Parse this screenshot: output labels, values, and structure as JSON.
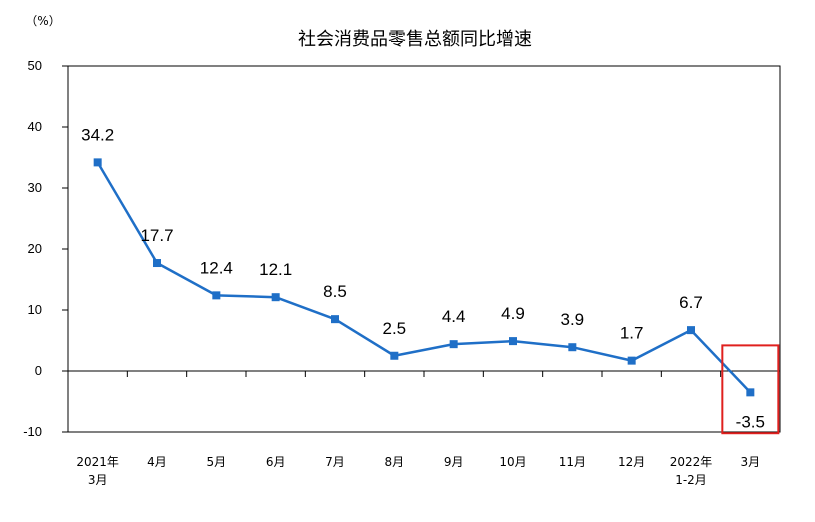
{
  "chart_data": {
    "type": "line",
    "title": "社会消费品零售总额同比增速",
    "ylabel": "（%）",
    "xlabel": "",
    "categories": [
      [
        "2021年",
        "3月"
      ],
      [
        "4月"
      ],
      [
        "5月"
      ],
      [
        "6月"
      ],
      [
        "7月"
      ],
      [
        "8月"
      ],
      [
        "9月"
      ],
      [
        "10月"
      ],
      [
        "11月"
      ],
      [
        "12月"
      ],
      [
        "2022年",
        "1-2月"
      ],
      [
        "3月"
      ]
    ],
    "series": [
      {
        "values": [
          34.2,
          17.7,
          12.4,
          12.1,
          8.5,
          2.5,
          4.4,
          4.9,
          3.9,
          1.7,
          6.7,
          -3.5
        ]
      }
    ],
    "data_labels": [
      "34.2",
      "17.7",
      "12.4",
      "12.1",
      "8.5",
      "2.5",
      "4.4",
      "4.9",
      "3.9",
      "1.7",
      "6.7",
      "-3.5"
    ],
    "ylim": [
      -10,
      50
    ],
    "yticks": [
      -10,
      0,
      10,
      20,
      30,
      40,
      50
    ],
    "grid": false,
    "line_color": "#1f6fc7",
    "highlight_color": "#e0201e",
    "highlight_index": 11
  }
}
